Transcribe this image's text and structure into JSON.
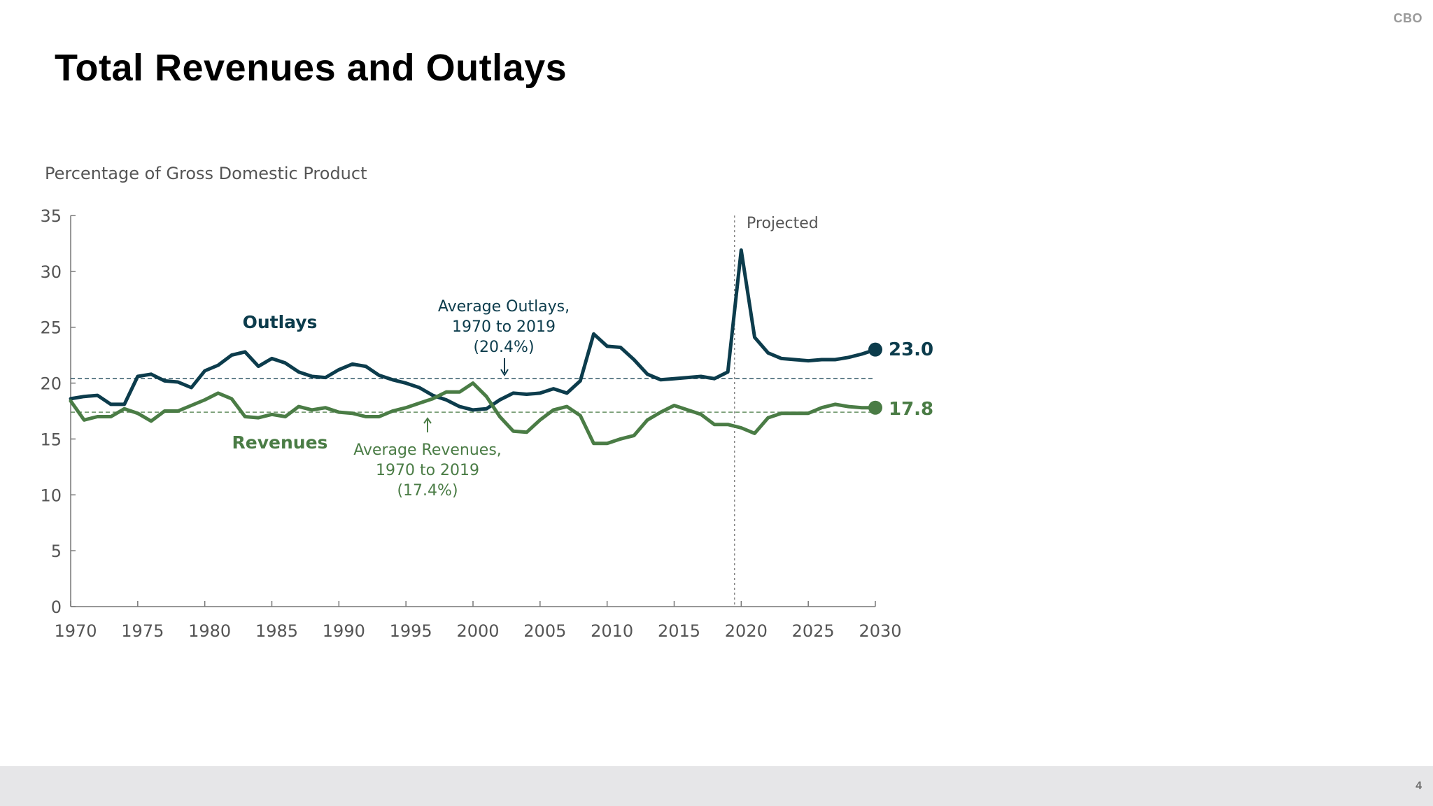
{
  "header": {
    "agency": "CBO",
    "title": "Total Revenues and Outlays"
  },
  "footer": {
    "page_number": "4"
  },
  "colors": {
    "outlays": "#0c3c4c",
    "revenues": "#4a7c45",
    "axis": "#777777",
    "text": "#555555"
  },
  "chart_data": {
    "type": "line",
    "ylabel": "Percentage of Gross Domestic Product",
    "xlim": [
      1970,
      2030
    ],
    "ylim": [
      0,
      35
    ],
    "x_ticks": [
      1970,
      1975,
      1980,
      1985,
      1990,
      1995,
      2000,
      2005,
      2010,
      2015,
      2020,
      2025,
      2030
    ],
    "y_ticks": [
      0,
      5,
      10,
      15,
      20,
      25,
      30,
      35
    ],
    "grid": false,
    "projected_from": 2019.5,
    "projected_label": "Projected",
    "x": [
      1970,
      1971,
      1972,
      1973,
      1974,
      1975,
      1976,
      1977,
      1978,
      1979,
      1980,
      1981,
      1982,
      1983,
      1984,
      1985,
      1986,
      1987,
      1988,
      1989,
      1990,
      1991,
      1992,
      1993,
      1994,
      1995,
      1996,
      1997,
      1998,
      1999,
      2000,
      2001,
      2002,
      2003,
      2004,
      2005,
      2006,
      2007,
      2008,
      2009,
      2010,
      2011,
      2012,
      2013,
      2014,
      2015,
      2016,
      2017,
      2018,
      2019,
      2020,
      2021,
      2022,
      2023,
      2024,
      2025,
      2026,
      2027,
      2028,
      2029,
      2030
    ],
    "series": [
      {
        "name": "Outlays",
        "end_label": "23.0",
        "values": [
          18.6,
          18.8,
          18.9,
          18.1,
          18.1,
          20.6,
          20.8,
          20.2,
          20.1,
          19.6,
          21.1,
          21.6,
          22.5,
          22.8,
          21.5,
          22.2,
          21.8,
          21.0,
          20.6,
          20.5,
          21.2,
          21.7,
          21.5,
          20.7,
          20.3,
          20.0,
          19.6,
          18.9,
          18.5,
          17.9,
          17.6,
          17.7,
          18.5,
          19.1,
          19.0,
          19.1,
          19.5,
          19.1,
          20.2,
          24.4,
          23.3,
          23.2,
          22.1,
          20.8,
          20.3,
          20.4,
          20.5,
          20.6,
          20.4,
          21.0,
          31.9,
          24.1,
          22.7,
          22.2,
          22.1,
          22.0,
          22.1,
          22.1,
          22.3,
          22.6,
          23.0
        ]
      },
      {
        "name": "Revenues",
        "end_label": "17.8",
        "values": [
          18.4,
          16.7,
          17.0,
          17.0,
          17.7,
          17.3,
          16.6,
          17.5,
          17.5,
          18.0,
          18.5,
          19.1,
          18.6,
          17.0,
          16.9,
          17.2,
          17.0,
          17.9,
          17.6,
          17.8,
          17.4,
          17.3,
          17.0,
          17.0,
          17.5,
          17.8,
          18.2,
          18.6,
          19.2,
          19.2,
          20.0,
          18.8,
          17.0,
          15.7,
          15.6,
          16.7,
          17.6,
          17.9,
          17.1,
          14.6,
          14.6,
          15.0,
          15.3,
          16.7,
          17.4,
          18.0,
          17.6,
          17.2,
          16.3,
          16.3,
          16.0,
          15.5,
          16.9,
          17.3,
          17.3,
          17.3,
          17.8,
          18.1,
          17.9,
          17.8,
          17.8
        ]
      }
    ],
    "reference_lines": [
      {
        "name": "Average Outlays",
        "value": 20.4,
        "label_lines": [
          "Average Outlays,",
          "1970 to 2019",
          "(20.4%)"
        ]
      },
      {
        "name": "Average Revenues",
        "value": 17.4,
        "label_lines": [
          "Average Revenues,",
          "1970 to 2019",
          "(17.4%)"
        ]
      }
    ]
  }
}
